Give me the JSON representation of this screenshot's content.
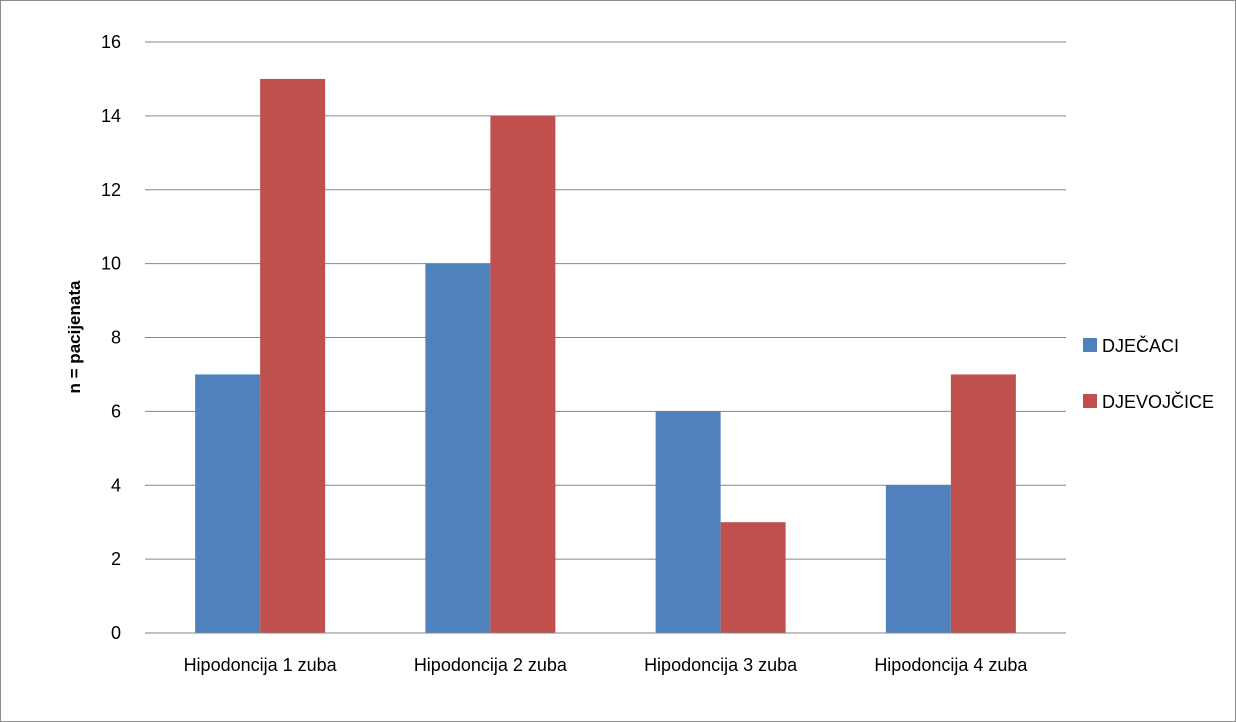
{
  "chart_data": {
    "type": "bar",
    "title": "",
    "xlabel": "",
    "ylabel": "n = pacijenata",
    "categories": [
      "Hipodoncija 1 zuba",
      "Hipodoncija 2 zuba",
      "Hipodoncija 3 zuba",
      "Hipodoncija 4 zuba"
    ],
    "series": [
      {
        "name": "DJEČACI",
        "values": [
          7,
          10,
          6,
          4
        ],
        "color": "#4f81bd"
      },
      {
        "name": "DJEVOJČICE",
        "values": [
          15,
          14,
          3,
          7
        ],
        "color": "#c0504d"
      }
    ],
    "ylim": [
      0,
      16
    ],
    "yticks": [
      0,
      2,
      4,
      6,
      8,
      10,
      12,
      14,
      16
    ],
    "grid": true,
    "legend_position": "right"
  }
}
